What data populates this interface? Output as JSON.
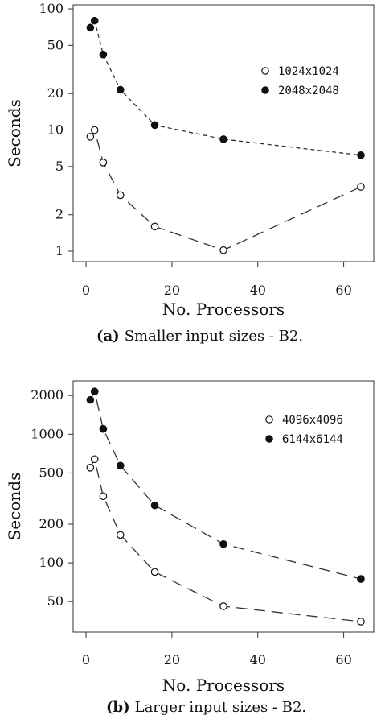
{
  "chart_data": [
    {
      "type": "line",
      "caption_tag": "(a)",
      "caption": "Smaller input sizes - B2.",
      "xlabel": "No. Processors",
      "ylabel": "Seconds",
      "xlim": [
        -3,
        67
      ],
      "ylim": [
        0.82,
        108
      ],
      "yscale": "log",
      "xticks": [
        0,
        20,
        40,
        60
      ],
      "yticks": [
        1,
        2,
        5,
        10,
        20,
        50,
        100
      ],
      "grid": false,
      "legend_position": "right",
      "series": [
        {
          "name": "1024x1024",
          "marker": "open-circle",
          "dash": "long-dash",
          "x": [
            1,
            2,
            4,
            8,
            16,
            32,
            64
          ],
          "y": [
            8.8,
            10,
            5.4,
            2.9,
            1.6,
            1.02,
            3.4
          ]
        },
        {
          "name": "2048x2048",
          "marker": "filled-circle",
          "dash": "short-dash",
          "x": [
            1,
            2,
            4,
            8,
            16,
            32,
            64
          ],
          "y": [
            70,
            80,
            42,
            21.5,
            11,
            8.4,
            6.2
          ]
        }
      ]
    },
    {
      "type": "line",
      "caption_tag": "(b)",
      "caption": "Larger input sizes - B2.",
      "xlabel": "No. Processors",
      "ylabel": "Seconds",
      "xlim": [
        -3,
        67
      ],
      "ylim": [
        29,
        2600
      ],
      "yscale": "log",
      "xticks": [
        0,
        20,
        40,
        60
      ],
      "yticks": [
        50,
        100,
        200,
        500,
        1000,
        2000
      ],
      "grid": false,
      "legend_position": "right",
      "series": [
        {
          "name": "4096x4096",
          "marker": "open-circle",
          "dash": "long-dash",
          "x": [
            1,
            2,
            4,
            8,
            16,
            32,
            64
          ],
          "y": [
            550,
            640,
            330,
            165,
            85,
            46,
            35
          ]
        },
        {
          "name": "6144x6144",
          "marker": "filled-circle",
          "dash": "long-dash",
          "x": [
            1,
            2,
            4,
            8,
            16,
            32,
            64
          ],
          "y": [
            1850,
            2150,
            1100,
            570,
            280,
            140,
            75
          ]
        }
      ]
    }
  ]
}
